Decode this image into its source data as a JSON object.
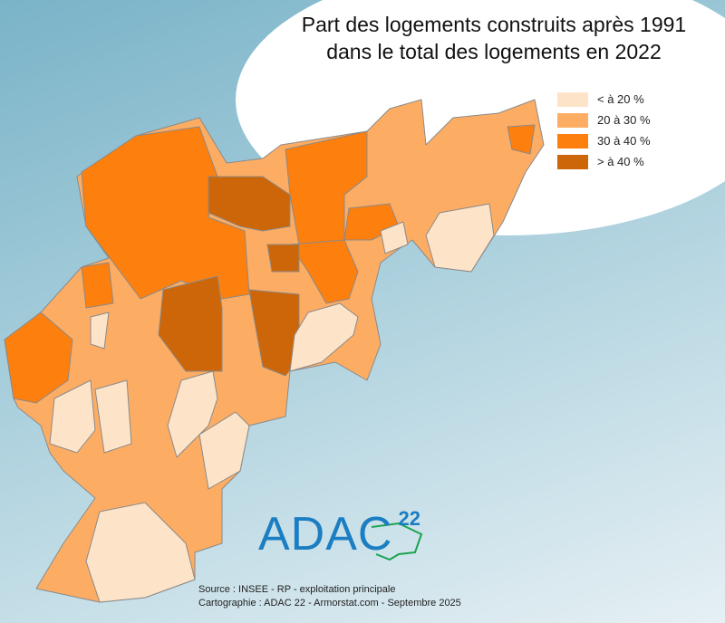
{
  "title_line1": "Part des logements construits après 1991",
  "title_line2": "dans le total des logements en 2022",
  "legend": [
    {
      "label": "< à 20 %",
      "color": "#fde3c8"
    },
    {
      "label": "20 à 30 %",
      "color": "#fdad63"
    },
    {
      "label": "30 à 40 %",
      "color": "#fd7f0e"
    },
    {
      "label": "> à 40 %",
      "color": "#cc6608"
    }
  ],
  "logo": {
    "text": "ADAC",
    "superscript": "22"
  },
  "source": "Source : INSEE - RP - exploitation principale",
  "credits": "Cartographie : ADAC 22 - Armorstat.com - Septembre 2025"
}
